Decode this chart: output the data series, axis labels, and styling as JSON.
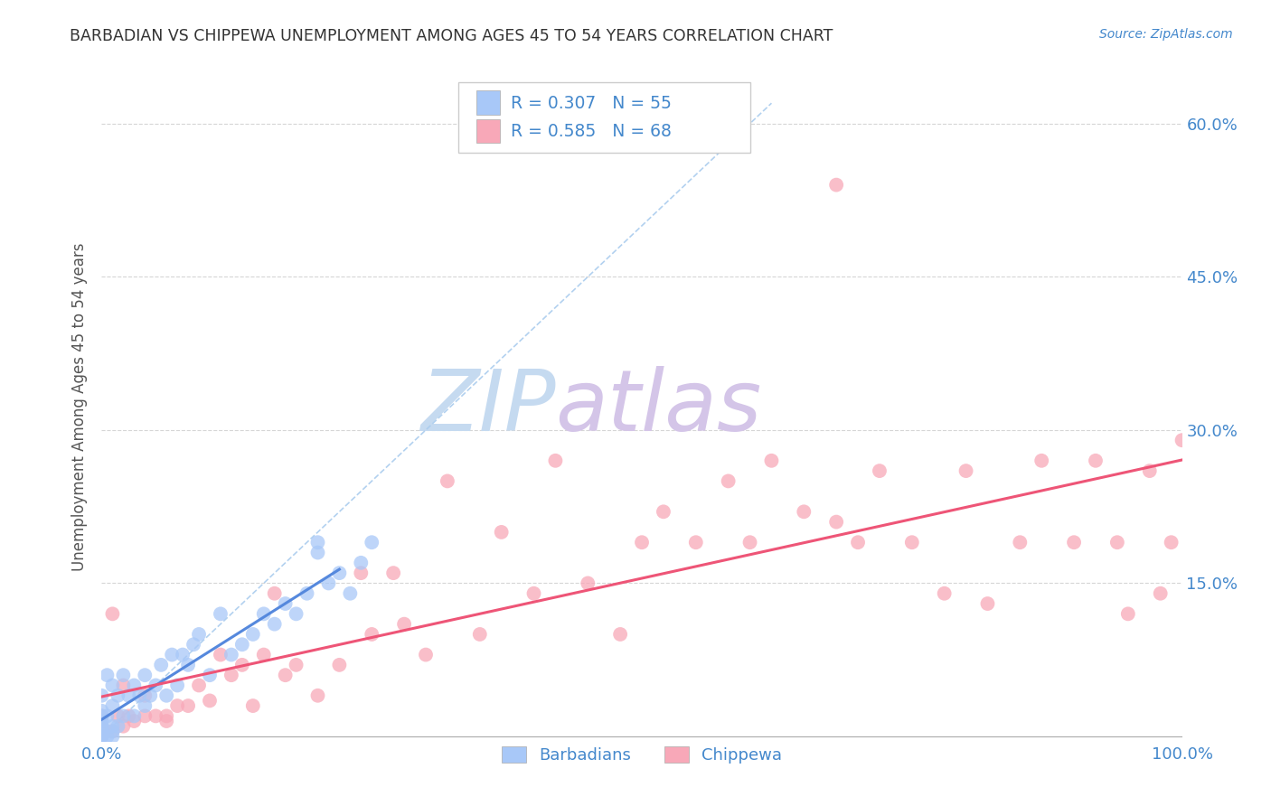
{
  "title": "BARBADIAN VS CHIPPEWA UNEMPLOYMENT AMONG AGES 45 TO 54 YEARS CORRELATION CHART",
  "source": "Source: ZipAtlas.com",
  "ylabel": "Unemployment Among Ages 45 to 54 years",
  "xlim": [
    0.0,
    1.0
  ],
  "ylim": [
    -0.005,
    0.65
  ],
  "ytick_positions": [
    0.0,
    0.15,
    0.3,
    0.45,
    0.6
  ],
  "ytick_labels": [
    "",
    "15.0%",
    "30.0%",
    "45.0%",
    "60.0%"
  ],
  "legend_labels": [
    "Barbadians",
    "Chippewa"
  ],
  "barbadian_R": "0.307",
  "barbadian_N": "55",
  "chippewa_R": "0.585",
  "chippewa_N": "68",
  "barbadian_color": "#a8c8f8",
  "chippewa_color": "#f8a8b8",
  "barbadian_line_color": "#5588dd",
  "chippewa_line_color": "#ee5577",
  "diagonal_color": "#aaccee",
  "title_color": "#333333",
  "axis_label_color": "#555555",
  "tick_color": "#4488cc",
  "watermark_zip_color": "#c8ddf0",
  "watermark_atlas_color": "#d8c8e8",
  "background_color": "#ffffff",
  "grid_color": "#cccccc",
  "barbadian_x": [
    0.0,
    0.0,
    0.0,
    0.0,
    0.0,
    0.0,
    0.0,
    0.0,
    0.0,
    0.0,
    0.005,
    0.005,
    0.005,
    0.01,
    0.01,
    0.01,
    0.01,
    0.01,
    0.015,
    0.015,
    0.02,
    0.02,
    0.025,
    0.03,
    0.03,
    0.035,
    0.04,
    0.04,
    0.045,
    0.05,
    0.055,
    0.06,
    0.065,
    0.07,
    0.075,
    0.08,
    0.085,
    0.09,
    0.1,
    0.11,
    0.12,
    0.13,
    0.14,
    0.15,
    0.16,
    0.17,
    0.18,
    0.19,
    0.2,
    0.21,
    0.22,
    0.23,
    0.24,
    0.25,
    0.2
  ],
  "barbadian_y": [
    0.0,
    0.0,
    0.0,
    0.005,
    0.01,
    0.01,
    0.015,
    0.02,
    0.025,
    0.04,
    0.0,
    0.02,
    0.06,
    0.0,
    0.005,
    0.01,
    0.03,
    0.05,
    0.01,
    0.04,
    0.02,
    0.06,
    0.04,
    0.02,
    0.05,
    0.04,
    0.03,
    0.06,
    0.04,
    0.05,
    0.07,
    0.04,
    0.08,
    0.05,
    0.08,
    0.07,
    0.09,
    0.1,
    0.06,
    0.12,
    0.08,
    0.09,
    0.1,
    0.12,
    0.11,
    0.13,
    0.12,
    0.14,
    0.18,
    0.15,
    0.16,
    0.14,
    0.17,
    0.19,
    0.19
  ],
  "chippewa_x": [
    0.0,
    0.0,
    0.0,
    0.0,
    0.0,
    0.01,
    0.01,
    0.015,
    0.02,
    0.02,
    0.025,
    0.03,
    0.04,
    0.04,
    0.05,
    0.06,
    0.06,
    0.07,
    0.08,
    0.09,
    0.1,
    0.11,
    0.12,
    0.13,
    0.14,
    0.15,
    0.16,
    0.17,
    0.18,
    0.2,
    0.22,
    0.24,
    0.25,
    0.27,
    0.28,
    0.3,
    0.32,
    0.35,
    0.37,
    0.4,
    0.42,
    0.45,
    0.48,
    0.5,
    0.52,
    0.55,
    0.58,
    0.6,
    0.62,
    0.65,
    0.68,
    0.7,
    0.72,
    0.75,
    0.78,
    0.8,
    0.82,
    0.85,
    0.87,
    0.9,
    0.92,
    0.94,
    0.95,
    0.97,
    0.98,
    0.99,
    1.0,
    0.68
  ],
  "chippewa_y": [
    0.0,
    0.0,
    0.005,
    0.01,
    0.02,
    0.005,
    0.12,
    0.02,
    0.01,
    0.05,
    0.02,
    0.015,
    0.02,
    0.04,
    0.02,
    0.015,
    0.02,
    0.03,
    0.03,
    0.05,
    0.035,
    0.08,
    0.06,
    0.07,
    0.03,
    0.08,
    0.14,
    0.06,
    0.07,
    0.04,
    0.07,
    0.16,
    0.1,
    0.16,
    0.11,
    0.08,
    0.25,
    0.1,
    0.2,
    0.14,
    0.27,
    0.15,
    0.1,
    0.19,
    0.22,
    0.19,
    0.25,
    0.19,
    0.27,
    0.22,
    0.21,
    0.19,
    0.26,
    0.19,
    0.14,
    0.26,
    0.13,
    0.19,
    0.27,
    0.19,
    0.27,
    0.19,
    0.12,
    0.26,
    0.14,
    0.19,
    0.29,
    0.54
  ]
}
